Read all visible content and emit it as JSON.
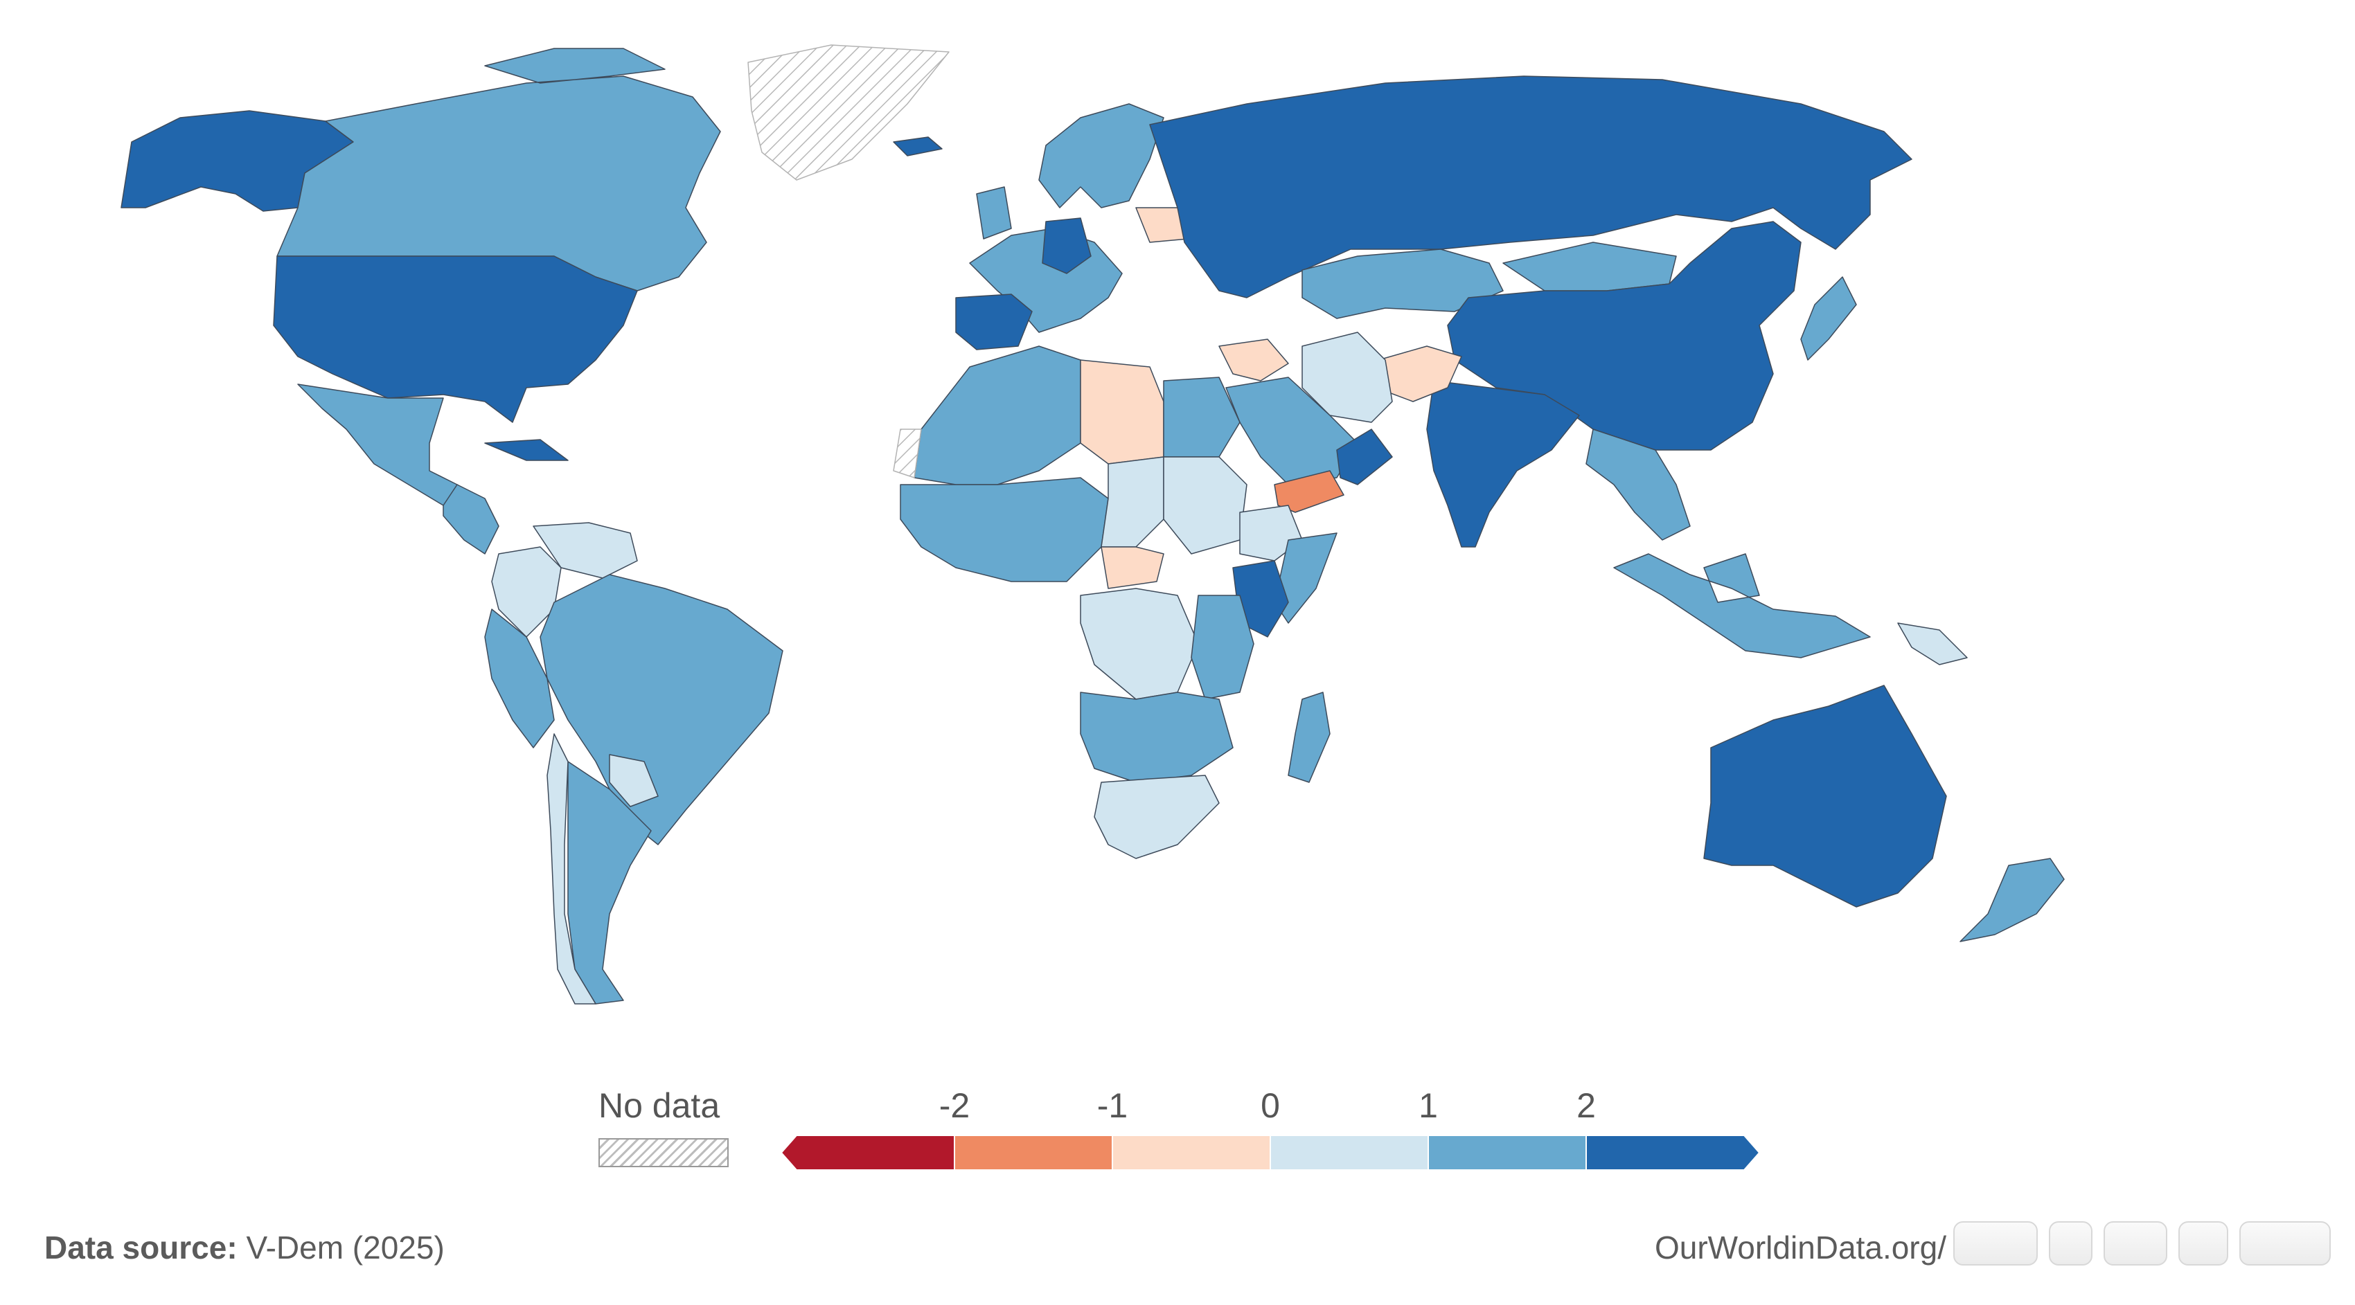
{
  "colors": {
    "ocean": "#ffffff",
    "border": "#3d4a5a",
    "no_data": "hatched-grey",
    "bins": [
      "#b2182b",
      "#ef8a62",
      "#fddbc7",
      "#d1e5f0",
      "#67a9cf",
      "#2166ac"
    ]
  },
  "legend": {
    "no_data_label": "No data",
    "ticks": [
      "-2",
      "-1",
      "0",
      "1",
      "2"
    ],
    "tick_values": [
      -2,
      -1,
      0,
      1,
      2
    ],
    "range": [
      -3,
      3
    ]
  },
  "footer": {
    "source_label": "Data source:",
    "source_value": "V-Dem (2025)",
    "credit": "OurWorldinData.org/"
  },
  "map_data": [
    {
      "region": "North America west",
      "bin": 5
    },
    {
      "region": "Canada",
      "bin": 4
    },
    {
      "region": "Greenland",
      "bin": -1
    },
    {
      "region": "United States",
      "bin": 5
    },
    {
      "region": "Mexico",
      "bin": 4
    },
    {
      "region": "Central America",
      "bin": 4
    },
    {
      "region": "Cuba",
      "bin": 5
    },
    {
      "region": "Venezuela",
      "bin": 3
    },
    {
      "region": "Colombia",
      "bin": 3
    },
    {
      "region": "Brazil",
      "bin": 4
    },
    {
      "region": "South America west",
      "bin": 4
    },
    {
      "region": "Argentina",
      "bin": 4
    },
    {
      "region": "Chile",
      "bin": 3
    },
    {
      "region": "Paraguay",
      "bin": 3
    },
    {
      "region": "Iceland",
      "bin": 5
    },
    {
      "region": "Western Europe",
      "bin": 4
    },
    {
      "region": "Spain",
      "bin": 5
    },
    {
      "region": "Germany",
      "bin": 5
    },
    {
      "region": "Scandinavia",
      "bin": 4
    },
    {
      "region": "Belarus",
      "bin": 2
    },
    {
      "region": "Russia",
      "bin": 5
    },
    {
      "region": "Kazakhstan",
      "bin": 4
    },
    {
      "region": "Mongolia",
      "bin": 4
    },
    {
      "region": "China",
      "bin": 5
    },
    {
      "region": "India",
      "bin": 5
    },
    {
      "region": "Afghanistan",
      "bin": 2
    },
    {
      "region": "Iran",
      "bin": 3
    },
    {
      "region": "Syria",
      "bin": 2
    },
    {
      "region": "Saudi Arabia",
      "bin": 4
    },
    {
      "region": "Yemen",
      "bin": 1
    },
    {
      "region": "Oman",
      "bin": 5
    },
    {
      "region": "Japan",
      "bin": 4
    },
    {
      "region": "Southeast Asia",
      "bin": 4
    },
    {
      "region": "Indonesia",
      "bin": 4
    },
    {
      "region": "Papua New Guinea",
      "bin": 3
    },
    {
      "region": "Australia",
      "bin": 5
    },
    {
      "region": "New Zealand",
      "bin": 4
    },
    {
      "region": "North Africa",
      "bin": 4
    },
    {
      "region": "Libya",
      "bin": 2
    },
    {
      "region": "Egypt",
      "bin": 4
    },
    {
      "region": "Western Sahara",
      "bin": -1
    },
    {
      "region": "West Africa",
      "bin": 4
    },
    {
      "region": "Chad",
      "bin": 3
    },
    {
      "region": "Sudan",
      "bin": 3
    },
    {
      "region": "Central African Republic",
      "bin": 2
    },
    {
      "region": "Ethiopia",
      "bin": 3
    },
    {
      "region": "Somalia",
      "bin": 4
    },
    {
      "region": "Kenya",
      "bin": 5
    },
    {
      "region": "DR Congo",
      "bin": 3
    },
    {
      "region": "East Africa",
      "bin": 4
    },
    {
      "region": "Southern Africa",
      "bin": 4
    },
    {
      "region": "South Africa",
      "bin": 3
    },
    {
      "region": "Madagascar",
      "bin": 4
    }
  ]
}
